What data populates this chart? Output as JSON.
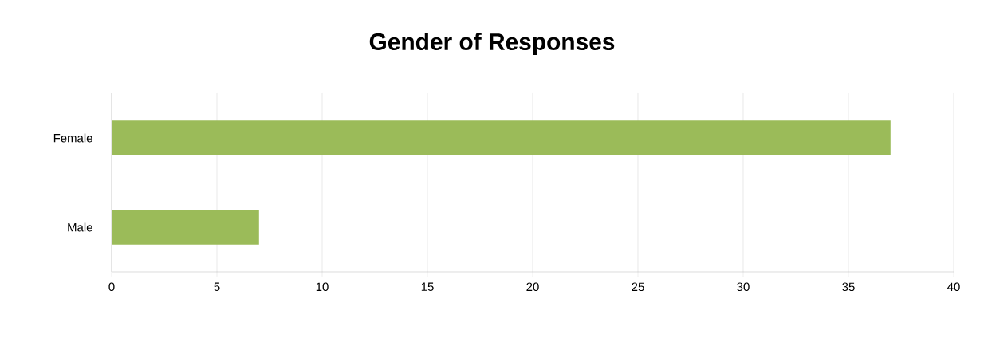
{
  "chart_data": {
    "type": "bar",
    "orientation": "horizontal",
    "title": "Gender of Responses",
    "categories": [
      "Female",
      "Male"
    ],
    "values": [
      37,
      7
    ],
    "color": "#9bbb59",
    "xlim": [
      0,
      40
    ],
    "xticks": [
      0,
      5,
      10,
      15,
      20,
      25,
      30,
      35,
      40
    ],
    "grid": "x"
  }
}
